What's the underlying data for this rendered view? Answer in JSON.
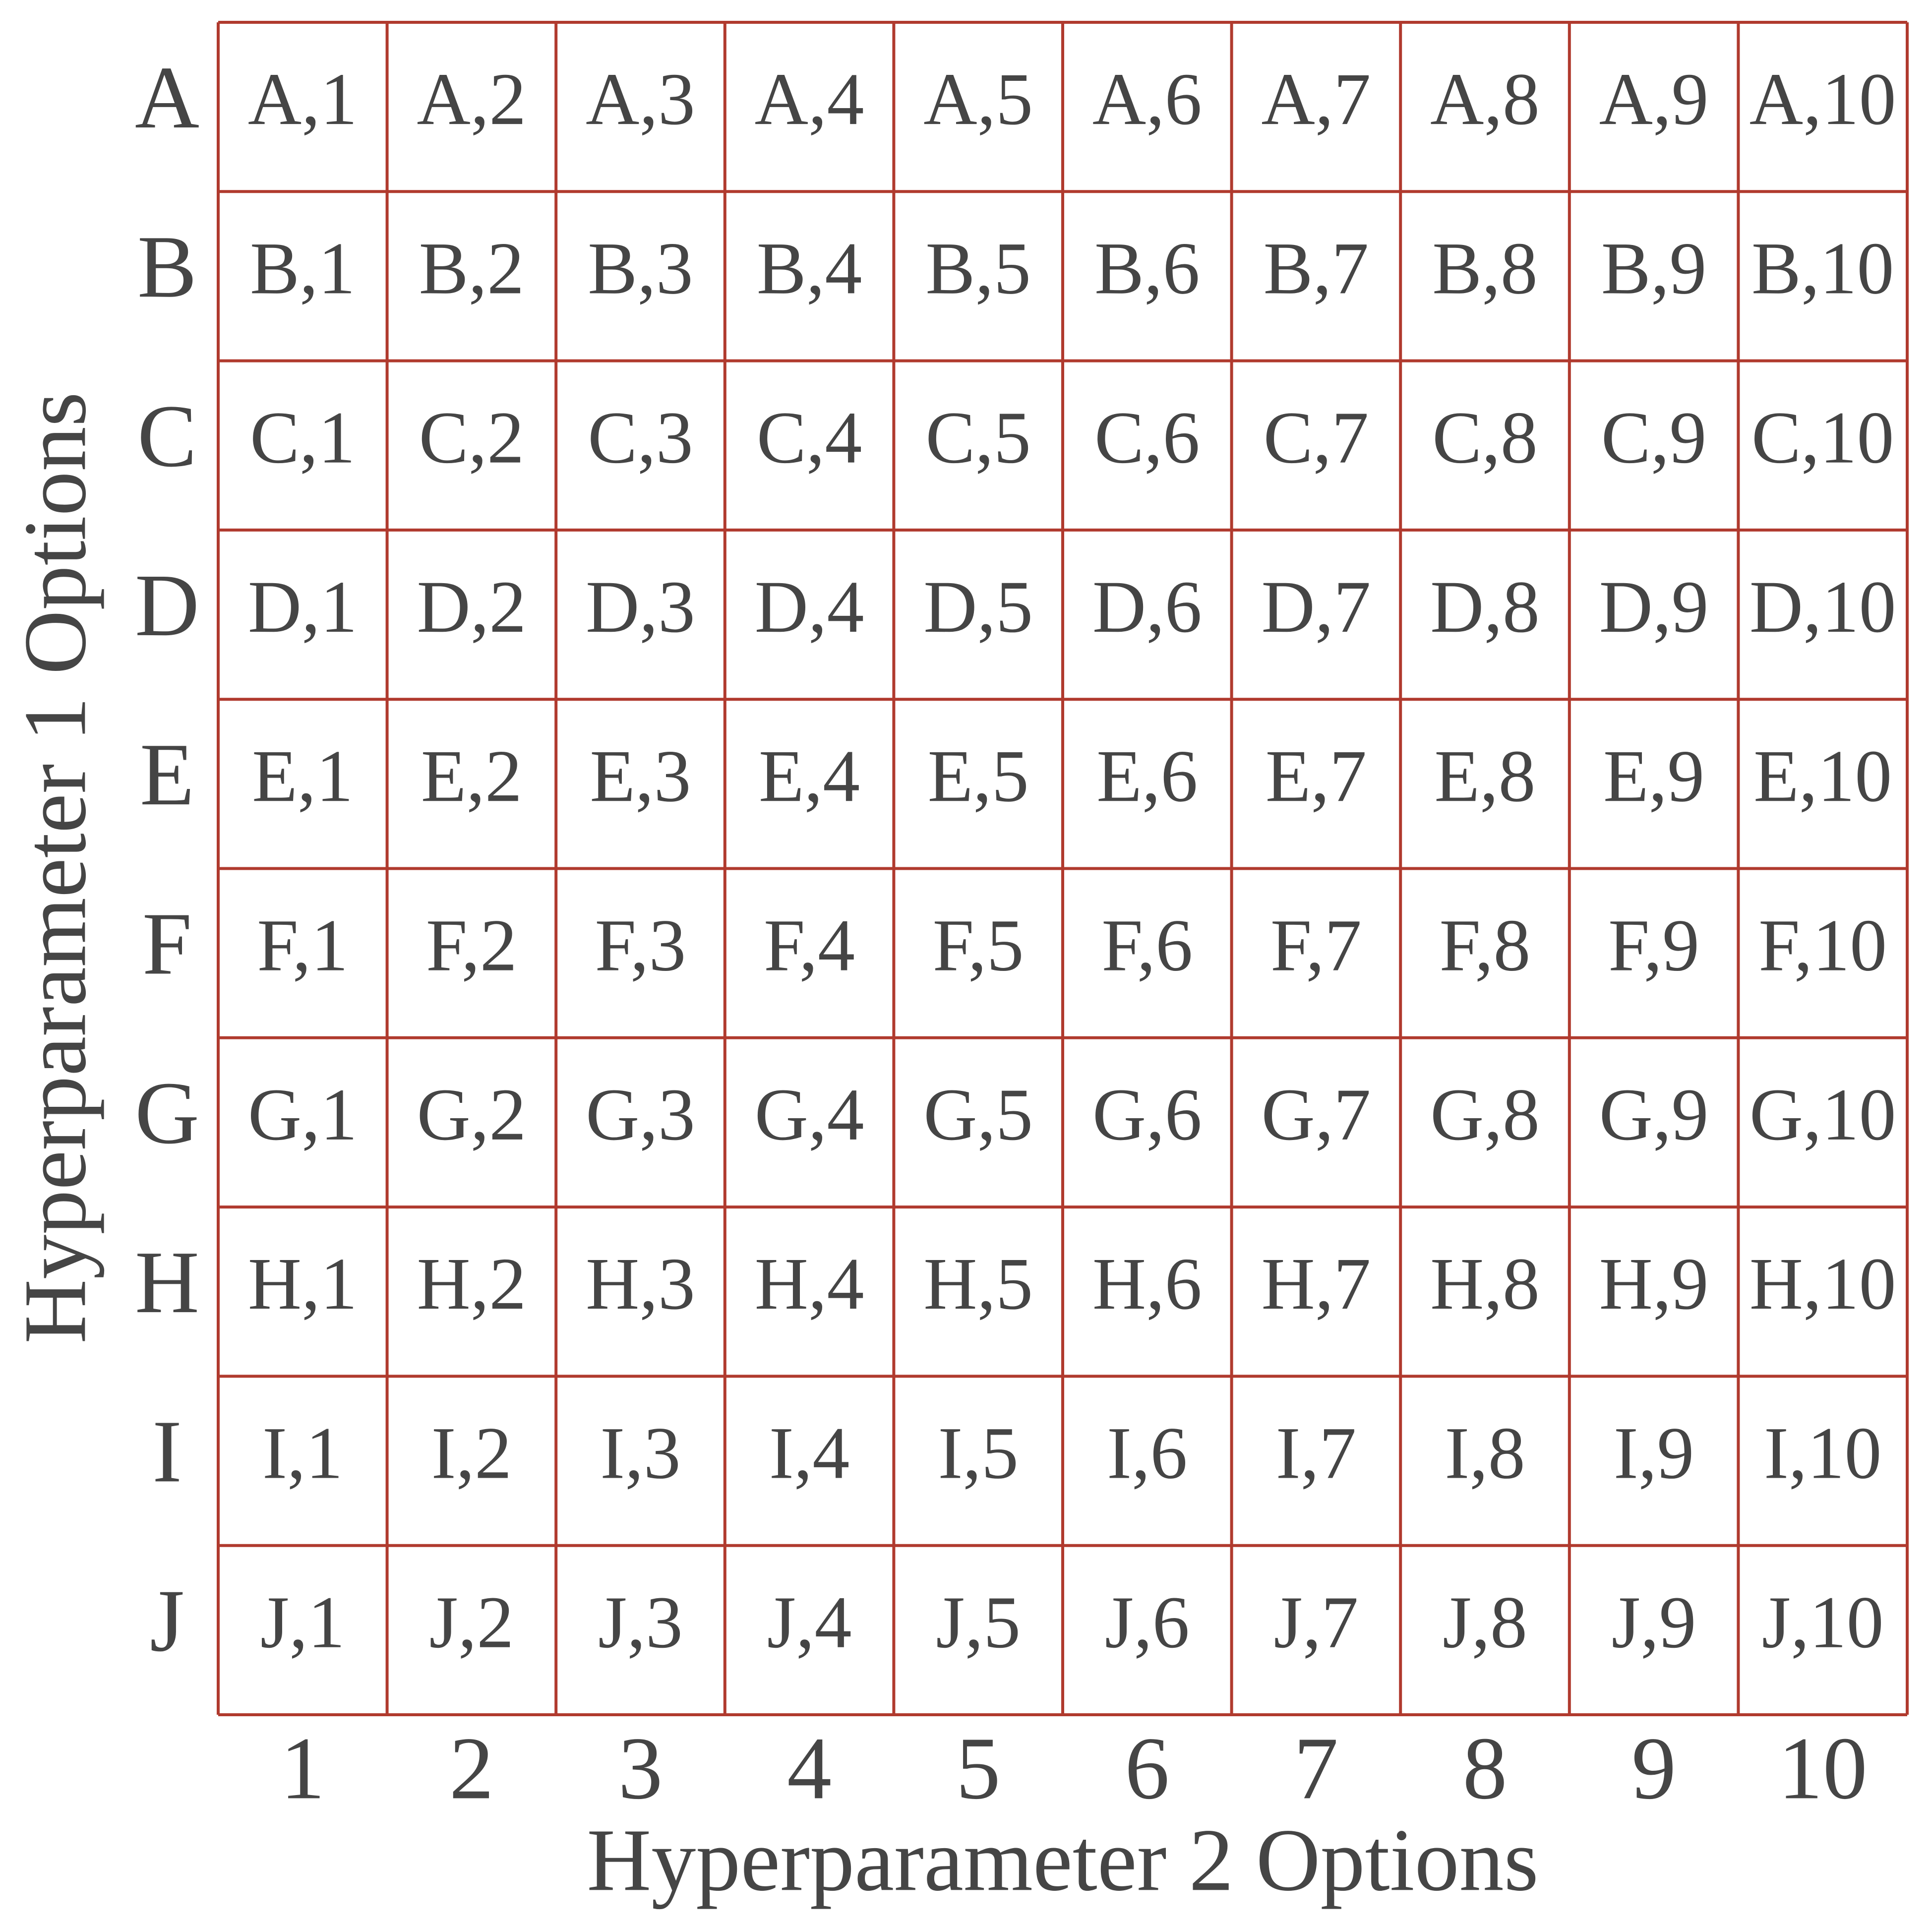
{
  "y_axis_title": "Hyperparameter 1 Options",
  "x_axis_title": "Hyperparameter 2 Options",
  "rows": [
    "A",
    "B",
    "C",
    "D",
    "E",
    "F",
    "G",
    "H",
    "I",
    "J"
  ],
  "columns": [
    "1",
    "2",
    "3",
    "4",
    "5",
    "6",
    "7",
    "8",
    "9",
    "10"
  ],
  "cells": [
    [
      "A,1",
      "A,2",
      "A,3",
      "A,4",
      "A,5",
      "A,6",
      "A,7",
      "A,8",
      "A,9",
      "A,10"
    ],
    [
      "B,1",
      "B,2",
      "B,3",
      "B,4",
      "B,5",
      "B,6",
      "B,7",
      "B,8",
      "B,9",
      "B,10"
    ],
    [
      "C,1",
      "C,2",
      "C,3",
      "C,4",
      "C,5",
      "C,6",
      "C,7",
      "C,8",
      "C,9",
      "C,10"
    ],
    [
      "D,1",
      "D,2",
      "D,3",
      "D,4",
      "D,5",
      "D,6",
      "D,7",
      "D,8",
      "D,9",
      "D,10"
    ],
    [
      "E,1",
      "E,2",
      "E,3",
      "E,4",
      "E,5",
      "E,6",
      "E,7",
      "E,8",
      "E,9",
      "E,10"
    ],
    [
      "F,1",
      "F,2",
      "F,3",
      "F,4",
      "F,5",
      "F,6",
      "F,7",
      "F,8",
      "F,9",
      "F,10"
    ],
    [
      "G,1",
      "G,2",
      "G,3",
      "G,4",
      "G,5",
      "G,6",
      "G,7",
      "G,8",
      "G,9",
      "G,10"
    ],
    [
      "H,1",
      "H,2",
      "H,3",
      "H,4",
      "H,5",
      "H,6",
      "H,7",
      "H,8",
      "H,9",
      "H,10"
    ],
    [
      "I,1",
      "I,2",
      "I,3",
      "I,4",
      "I,5",
      "I,6",
      "I,7",
      "I,8",
      "I,9",
      "I,10"
    ],
    [
      "J,1",
      "J,2",
      "J,3",
      "J,4",
      "J,5",
      "J,6",
      "J,7",
      "J,8",
      "J,9",
      "J,10"
    ]
  ]
}
